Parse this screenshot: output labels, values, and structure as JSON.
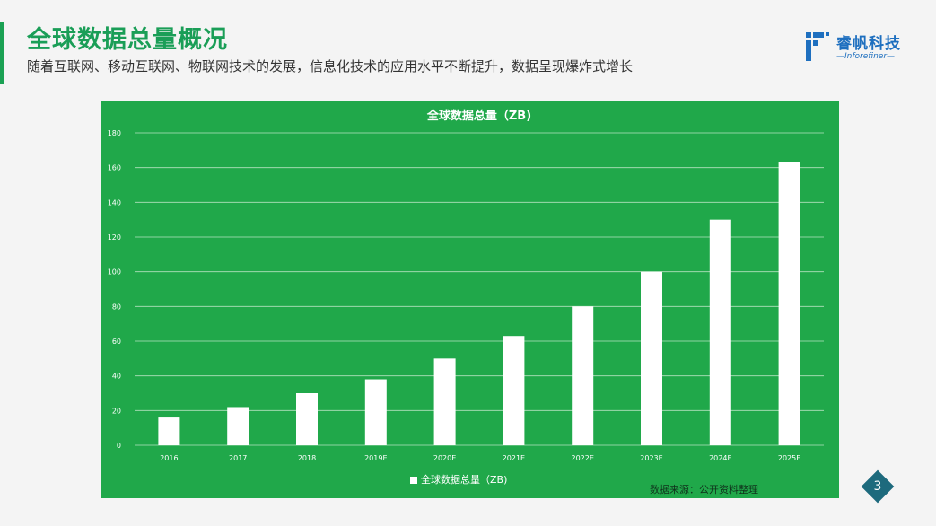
{
  "slide": {
    "title": "全球数据总量概况",
    "subtitle": "随着互联网、移动互联网、物联网技术的发展，信息化技术的应用水平不断提升，数据呈现爆炸式增长",
    "page_number": "3",
    "source": "数据来源：公开资料整理",
    "accent_color": "#1aa153"
  },
  "logo": {
    "name": "睿帆科技",
    "tagline": "Inforefiner",
    "color": "#1e6fbf"
  },
  "chart_data": {
    "type": "bar",
    "title": "全球数据总量（ZB)",
    "categories": [
      "2016",
      "2017",
      "2018",
      "2019E",
      "2020E",
      "2021E",
      "2022E",
      "2023E",
      "2024E",
      "2025E"
    ],
    "series": [
      {
        "name": "全球数据总量（ZB)",
        "values": [
          16,
          22,
          30,
          38,
          50,
          63,
          80,
          100,
          130,
          163
        ]
      }
    ],
    "ylim": [
      0,
      180
    ],
    "yticks": [
      0,
      20,
      40,
      60,
      80,
      100,
      120,
      140,
      160,
      180
    ],
    "grid": true,
    "legend": "bottom",
    "background_color": "#20a84a",
    "bar_color": "#ffffff"
  }
}
